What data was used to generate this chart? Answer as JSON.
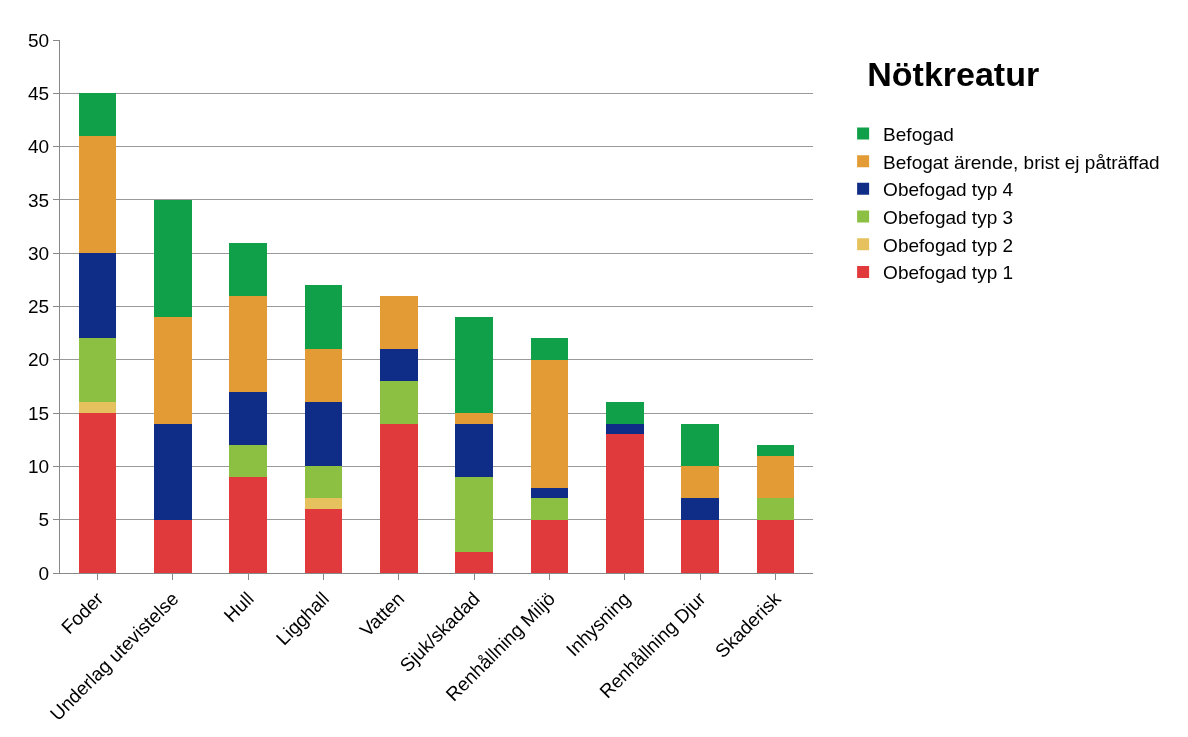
{
  "chart_data": {
    "type": "bar",
    "title": "Nötkreatur",
    "stacked": true,
    "categories": [
      "Foder",
      "Underlag utevistelse",
      "Hull",
      "Ligghall",
      "Vatten",
      "Sjuk/skadad",
      "Renhållning Miljö",
      "Inhysning",
      "Renhållning Djur",
      "Skaderisk"
    ],
    "series": [
      {
        "name": "Obefogad typ 1",
        "color": "#e03a3c",
        "values": [
          15,
          5,
          9,
          6,
          14,
          2,
          5,
          13,
          5,
          5
        ]
      },
      {
        "name": "Obefogad typ 2",
        "color": "#e6c25e",
        "values": [
          1,
          0,
          0,
          1,
          0,
          0,
          0,
          0,
          0,
          0
        ]
      },
      {
        "name": "Obefogad typ 3",
        "color": "#8cc042",
        "values": [
          6,
          0,
          3,
          3,
          4,
          7,
          2,
          0,
          0,
          2
        ]
      },
      {
        "name": "Obefogad typ 4",
        "color": "#0f2d86",
        "values": [
          8,
          9,
          5,
          6,
          3,
          5,
          1,
          1,
          2,
          0
        ]
      },
      {
        "name": "Befogat ärende, brist ej påträffad",
        "color": "#e29b35",
        "values": [
          11,
          10,
          9,
          5,
          5,
          1,
          12,
          0,
          3,
          4
        ]
      },
      {
        "name": "Befogad",
        "color": "#10a049",
        "values": [
          4,
          11,
          5,
          6,
          0,
          9,
          2,
          2,
          4,
          1
        ]
      }
    ],
    "ylim": [
      0,
      50
    ],
    "yticks": [
      0,
      5,
      10,
      15,
      20,
      25,
      30,
      35,
      40,
      45,
      50
    ],
    "grid": "y",
    "legend": "right"
  }
}
